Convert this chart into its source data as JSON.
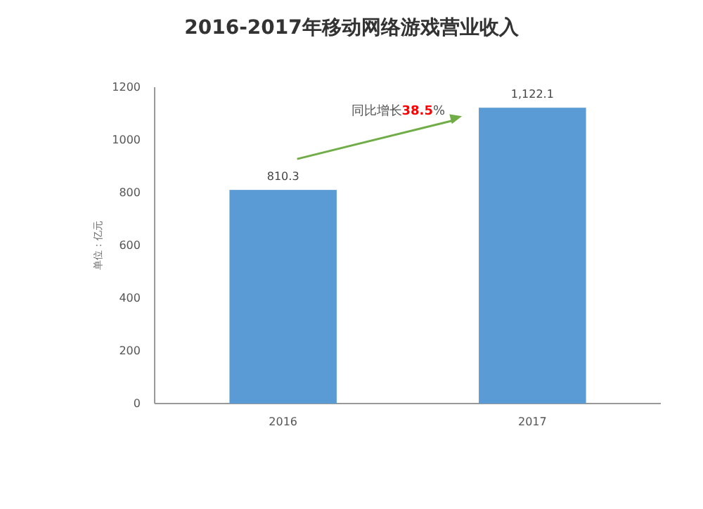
{
  "chart_data": {
    "type": "bar",
    "title": "2016-2017年移动网络游戏营业收入",
    "ylabel": "单位：亿元",
    "categories": [
      "2016",
      "2017"
    ],
    "values": [
      810.3,
      1122.1
    ],
    "color": "#5b9bd5",
    "value_labels": [
      "810.3",
      "1,122.1"
    ],
    "ylim": [
      0,
      1200
    ],
    "yticks": [
      0,
      200,
      400,
      600,
      800,
      1000,
      1200
    ],
    "grid": false,
    "annotations": [
      "同比增长38.5%"
    ]
  }
}
